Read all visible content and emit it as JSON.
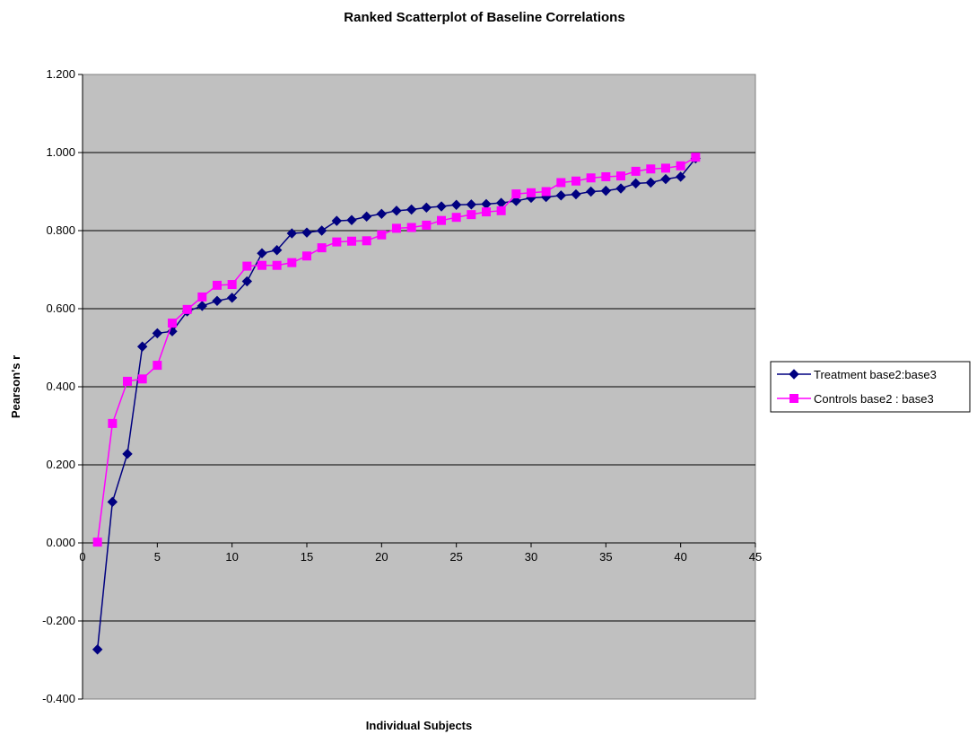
{
  "chart_data": {
    "type": "line",
    "title": "Ranked Scatterplot of  Baseline Correlations",
    "xlabel": "Individual Subjects",
    "ylabel": "Pearson's r",
    "xlim": [
      0,
      45
    ],
    "ylim": [
      -0.4,
      1.2
    ],
    "x_ticks": [
      "0",
      "5",
      "10",
      "15",
      "20",
      "25",
      "30",
      "35",
      "40",
      "45"
    ],
    "y_ticks": [
      "-0.400",
      "-0.200",
      "0.000",
      "0.200",
      "0.400",
      "0.600",
      "0.800",
      "1.000",
      "1.200"
    ],
    "grid": "horizontal",
    "plot_background": "#c0c0c0",
    "legend_position": "right",
    "series": [
      {
        "name": "Treatment base2:base3",
        "color": "#000080",
        "marker": "diamond",
        "x": [
          1,
          2,
          3,
          4,
          5,
          6,
          7,
          8,
          9,
          10,
          11,
          12,
          13,
          14,
          15,
          16,
          17,
          18,
          19,
          20,
          21,
          22,
          23,
          24,
          25,
          26,
          27,
          28,
          29,
          30,
          31,
          32,
          33,
          34,
          35,
          36,
          37,
          38,
          39,
          40,
          41
        ],
        "values": [
          -0.273,
          0.105,
          0.228,
          0.503,
          0.537,
          0.542,
          0.593,
          0.607,
          0.62,
          0.628,
          0.67,
          0.742,
          0.75,
          0.793,
          0.795,
          0.8,
          0.825,
          0.827,
          0.836,
          0.843,
          0.851,
          0.854,
          0.859,
          0.862,
          0.866,
          0.867,
          0.868,
          0.871,
          0.876,
          0.884,
          0.886,
          0.89,
          0.893,
          0.9,
          0.902,
          0.908,
          0.921,
          0.923,
          0.932,
          0.938,
          0.985
        ]
      },
      {
        "name": "Controls base2 : base3",
        "color": "#ff00ff",
        "marker": "square",
        "x": [
          1,
          2,
          3,
          4,
          5,
          6,
          7,
          8,
          9,
          10,
          11,
          12,
          13,
          14,
          15,
          16,
          17,
          18,
          19,
          20,
          21,
          22,
          23,
          24,
          25,
          26,
          27,
          28,
          29,
          30,
          31,
          32,
          33,
          34,
          35,
          36,
          37,
          38,
          39,
          40,
          41
        ],
        "values": [
          0.002,
          0.306,
          0.414,
          0.42,
          0.455,
          0.563,
          0.598,
          0.63,
          0.66,
          0.662,
          0.709,
          0.711,
          0.711,
          0.718,
          0.735,
          0.756,
          0.771,
          0.773,
          0.774,
          0.789,
          0.806,
          0.808,
          0.814,
          0.826,
          0.834,
          0.841,
          0.848,
          0.851,
          0.894,
          0.897,
          0.9,
          0.923,
          0.927,
          0.935,
          0.938,
          0.94,
          0.952,
          0.958,
          0.96,
          0.966,
          0.988
        ]
      }
    ]
  }
}
